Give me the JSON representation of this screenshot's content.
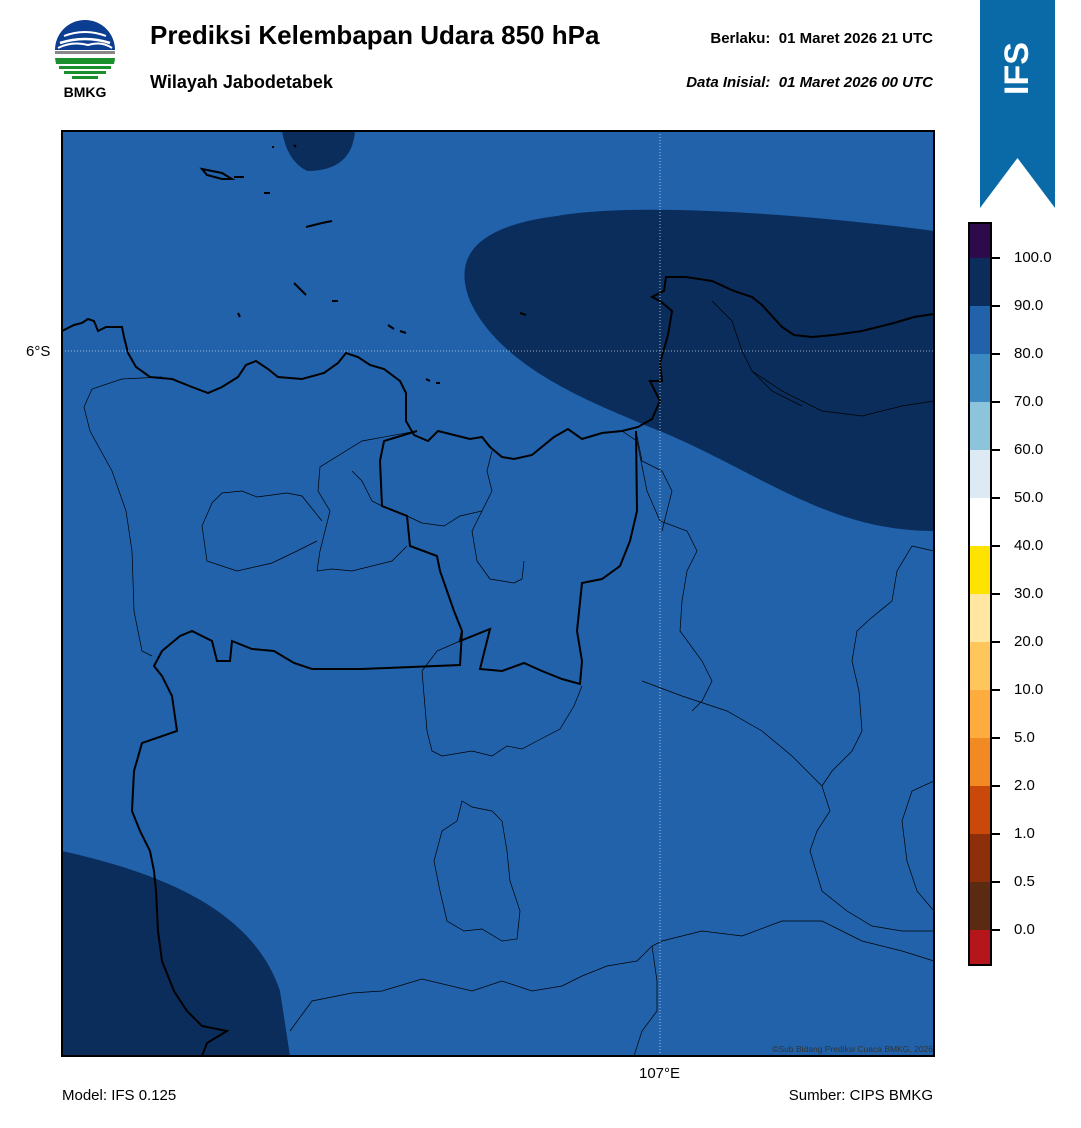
{
  "header": {
    "title": "Prediksi Kelembapan Udara 850 hPa",
    "region": "Wilayah Jabodetabek",
    "valid_label": "Berlaku:",
    "valid_time": "01 Maret 2026 21 UTC",
    "init_label": "Data Inisial:",
    "init_time": "01 Maret 2026 00 UTC"
  },
  "logo": {
    "text": "BMKG",
    "icon": "bmkg-logo-icon"
  },
  "model_badge": {
    "text": "IFS",
    "color": "#0a6aa8"
  },
  "map": {
    "lat_label": "6°S",
    "lon_label": "107°E",
    "copyright": "©Sub Bidang Prediksi Cuaca BMKG, 2026",
    "field_colors": {
      "band_80_90": "#2162ab",
      "band_90_100": "#0a2d5c"
    }
  },
  "footer": {
    "model": "Model: IFS 0.125",
    "source": "Sumber: CIPS BMKG"
  },
  "colorbar": {
    "extend_top_color": "#2d0a4a",
    "extend_bottom_color": "#e63a2c",
    "levels": [
      {
        "label": "100.0",
        "color": "#0a2d5c"
      },
      {
        "label": "90.0",
        "color": "#2162ab"
      },
      {
        "label": "80.0",
        "color": "#3b89c0"
      },
      {
        "label": "70.0",
        "color": "#8cc4dc"
      },
      {
        "label": "60.0",
        "color": "#ddeaf3"
      },
      {
        "label": "50.0",
        "color": "#ffffff"
      },
      {
        "label": "40.0",
        "color": "#ffe300"
      },
      {
        "label": "30.0",
        "color": "#ffe7a1"
      },
      {
        "label": "20.0",
        "color": "#ffc65b"
      },
      {
        "label": "10.0",
        "color": "#ffac3f"
      },
      {
        "label": "5.0",
        "color": "#f28a23"
      },
      {
        "label": "2.0",
        "color": "#c9480a"
      },
      {
        "label": "1.0",
        "color": "#8e2f0c"
      },
      {
        "label": "0.5",
        "color": "#5a2a12"
      },
      {
        "label": "0.0",
        "color": "#b5161b"
      }
    ]
  }
}
